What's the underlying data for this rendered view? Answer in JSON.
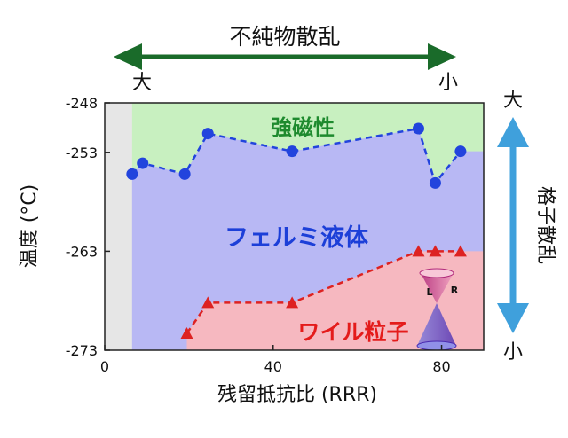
{
  "chart_data": {
    "type": "line",
    "xlabel": "残留抵抗比 (RRR)",
    "ylabel": "温度 (°C)",
    "xlim": [
      0,
      90
    ],
    "ylim": [
      -273,
      -248
    ],
    "x_ticks": [
      0,
      40,
      80
    ],
    "y_ticks": [
      -248,
      -253,
      -263,
      -273
    ],
    "x_tick_labels": [
      "0",
      "40",
      "80"
    ],
    "y_tick_labels": [
      "-248",
      "-253",
      "-263",
      "-273"
    ],
    "grid": false,
    "top_arrow": {
      "label": "不純物散乱",
      "left_label": "大",
      "right_label": "小",
      "color": "#1a6b2a"
    },
    "right_arrow": {
      "label": "格子散乱",
      "top_label": "大",
      "bottom_label": "小",
      "color": "#3fa0dc"
    },
    "regions": [
      {
        "name": "強磁性",
        "color": "#c8f0c0",
        "text_color": "#1e8a2e"
      },
      {
        "name": "フェルミ液体",
        "color": "#b8b8f4",
        "text_color": "#1c3fd8"
      },
      {
        "name": "ワイル粒子",
        "color": "#f6b8c0",
        "text_color": "#e41b1b"
      }
    ],
    "excluded_region": {
      "x_range": [
        0,
        6.5
      ],
      "color": "#e6e6e6"
    },
    "series": [
      {
        "marker": "circle",
        "color": "#2244dd",
        "points": [
          {
            "x": 6.5,
            "y": -255.2
          },
          {
            "x": 9,
            "y": -254.1
          },
          {
            "x": 19,
            "y": -255.2
          },
          {
            "x": 24.5,
            "y": -251.1
          },
          {
            "x": 44.5,
            "y": -252.9
          },
          {
            "x": 74.5,
            "y": -250.6
          },
          {
            "x": 78.5,
            "y": -256.1
          },
          {
            "x": 84.5,
            "y": -252.9
          }
        ]
      },
      {
        "marker": "triangle",
        "color": "#dd2222",
        "points": [
          {
            "x": 19.5,
            "y": -271.3
          },
          {
            "x": 24.5,
            "y": -268.2
          },
          {
            "x": 44.5,
            "y": -268.2
          },
          {
            "x": 74.5,
            "y": -263.0
          },
          {
            "x": 78.5,
            "y": -263.0
          },
          {
            "x": 84.5,
            "y": -263.0
          }
        ]
      }
    ],
    "inset_labels": [
      "L",
      "R"
    ]
  }
}
